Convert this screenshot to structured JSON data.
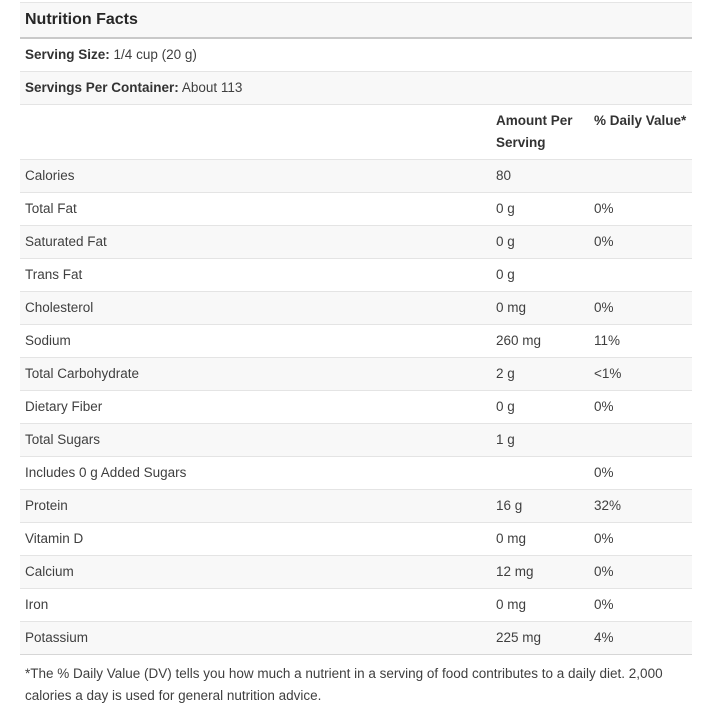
{
  "theme": {
    "stripe_color": "#f8f8f8",
    "divider_color": "#e4e4e4",
    "title_divider_color": "#c9c9c9",
    "text_color": "#3f3f3f"
  },
  "header": {
    "title": "Nutrition Facts",
    "serving_size_label": "Serving Size:",
    "serving_size_value": "1/4 cup (20 g)",
    "servings_per_container_label": "Servings Per Container:",
    "servings_per_container_value": "About 113"
  },
  "columns": {
    "amount": "Amount Per Serving",
    "daily_value": "% Daily Value*"
  },
  "table": {
    "rows": [
      {
        "name": "Calories",
        "amount": "80",
        "dv": ""
      },
      {
        "name": "Total Fat",
        "amount": "0 g",
        "dv": "0%"
      },
      {
        "name": "Saturated Fat",
        "amount": "0 g",
        "dv": "0%"
      },
      {
        "name": "Trans Fat",
        "amount": "0 g",
        "dv": ""
      },
      {
        "name": "Cholesterol",
        "amount": "0 mg",
        "dv": "0%"
      },
      {
        "name": "Sodium",
        "amount": "260 mg",
        "dv": "11%"
      },
      {
        "name": "Total Carbohydrate",
        "amount": "2 g",
        "dv": "<1%"
      },
      {
        "name": "Dietary Fiber",
        "amount": "0 g",
        "dv": "0%"
      },
      {
        "name": "Total Sugars",
        "amount": "1 g",
        "dv": ""
      },
      {
        "name": "Includes 0 g Added Sugars",
        "amount": "",
        "dv": "0%"
      },
      {
        "name": "Protein",
        "amount": "16 g",
        "dv": "32%"
      },
      {
        "name": "Vitamin D",
        "amount": "0 mg",
        "dv": "0%"
      },
      {
        "name": "Calcium",
        "amount": "12 mg",
        "dv": "0%"
      },
      {
        "name": "Iron",
        "amount": "0 mg",
        "dv": "0%"
      },
      {
        "name": "Potassium",
        "amount": "225 mg",
        "dv": "4%"
      }
    ]
  },
  "footnote": "*The % Daily Value (DV) tells you how much a nutrient in a serving of food contributes to a daily diet. 2,000 calories a day is used for general nutrition advice."
}
